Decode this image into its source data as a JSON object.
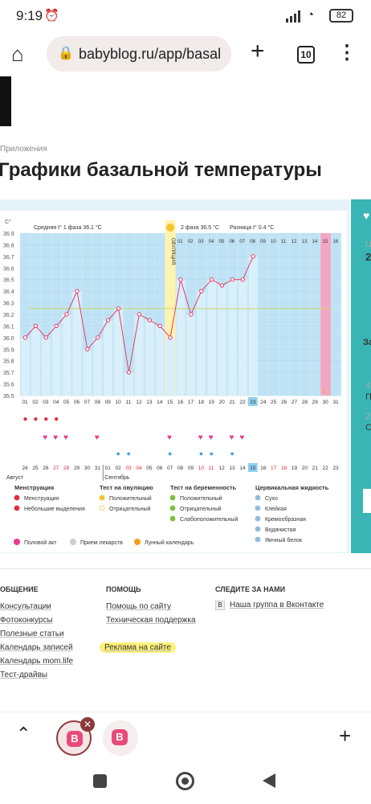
{
  "status_bar": {
    "time": "9:19",
    "battery": "82"
  },
  "browser": {
    "url": "babyblog.ru/app/basal",
    "tab_count": "10"
  },
  "breadcrumb": "Приложения",
  "page_title": "Графики базальной температуры",
  "sidebar_snippets": [
    "Ц",
    "2",
    "За",
    "4",
    "П",
    "2",
    "С"
  ],
  "chart_data": {
    "type": "line",
    "ylabel": "С°",
    "y_ticks": [
      "36.9",
      "36.8",
      "36.7",
      "36.6",
      "36.5",
      "36.4",
      "36.3",
      "36.2",
      "36.1",
      "36.0",
      "35.9",
      "35.8",
      "35.7",
      "35.6",
      "35.5"
    ],
    "ylim": [
      35.5,
      36.9
    ],
    "phase1_label": "Средняя t° 1 фаза 36.1 °C",
    "phase2_label": "2 фаза 36.5 °C",
    "diff_label": "Разница t° 0.4 °C",
    "ovulation_label": "ОВУЛЯЦИЯ",
    "cycle_days": [
      "01",
      "02",
      "03",
      "04",
      "05",
      "06",
      "07",
      "08",
      "09",
      "10",
      "11",
      "12",
      "13",
      "14",
      "15",
      "16",
      "17",
      "18",
      "19",
      "20",
      "21",
      "22",
      "23",
      "24",
      "25",
      "26",
      "27",
      "28",
      "29",
      "30",
      "31"
    ],
    "top_days": [
      "01",
      "02",
      "03",
      "04",
      "05",
      "06",
      "07",
      "08",
      "09",
      "10",
      "11",
      "12",
      "13",
      "14",
      "15",
      "16"
    ],
    "current_day": "23",
    "temperatures": [
      36.0,
      36.1,
      36.0,
      36.1,
      36.2,
      36.4,
      35.9,
      36.0,
      36.15,
      36.25,
      35.7,
      36.2,
      36.15,
      36.1,
      36.0,
      36.5,
      36.2,
      36.4,
      36.5,
      36.45,
      36.5,
      36.5,
      36.7
    ],
    "coverline": 36.25,
    "dates": [
      "24",
      "25",
      "26",
      "27",
      "28",
      "29",
      "30",
      "31",
      "01",
      "02",
      "03",
      "04",
      "05",
      "06",
      "07",
      "08",
      "09",
      "10",
      "11",
      "12",
      "13",
      "14",
      "15",
      "16",
      "17",
      "18",
      "19",
      "20",
      "21",
      "22",
      "23"
    ],
    "month_labels": [
      "Август",
      "Сентябрь"
    ],
    "menstruation_days": [
      1,
      2,
      3,
      4
    ],
    "intercourse_days": [
      3,
      4,
      5,
      8,
      15,
      18,
      19,
      21,
      22
    ],
    "cervical_drop_days": [
      10,
      11,
      15,
      18,
      19,
      21
    ]
  },
  "legend": {
    "groups": [
      {
        "title": "Менструация",
        "items": [
          "Менструация",
          "Небольшие выделения"
        ]
      },
      {
        "title": "Тест на овуляцию",
        "items": [
          "Положительный",
          "Отрицательный"
        ]
      },
      {
        "title": "Тест на беременность",
        "items": [
          "Положительный",
          "Отрицательный",
          "Слабоположительный"
        ]
      },
      {
        "title": "Цервикальная жидкость",
        "items": [
          "Сухо",
          "Клейкая",
          "Кремообразная",
          "Водянистая",
          "Яичный белок"
        ]
      }
    ],
    "extras": [
      "Половой акт",
      "Прием лекарств",
      "Лунный календарь"
    ]
  },
  "footer": {
    "col1_title": "ОБЩЕНИЕ",
    "col1_links": [
      "Консультации",
      "Фотоконкурсы",
      "Полезные статьи",
      "Календарь записей",
      "Календарь mom.life",
      "Тест-драйвы"
    ],
    "col2_title": "ПОМОЩЬ",
    "col2_links": [
      "Помощь по сайту",
      "Техническая поддержка",
      "Реклама на сайте"
    ],
    "col3_title": "СЛЕДИТЕ ЗА НАМИ",
    "col3_links": [
      "Наша группа в Вконтакте"
    ]
  }
}
